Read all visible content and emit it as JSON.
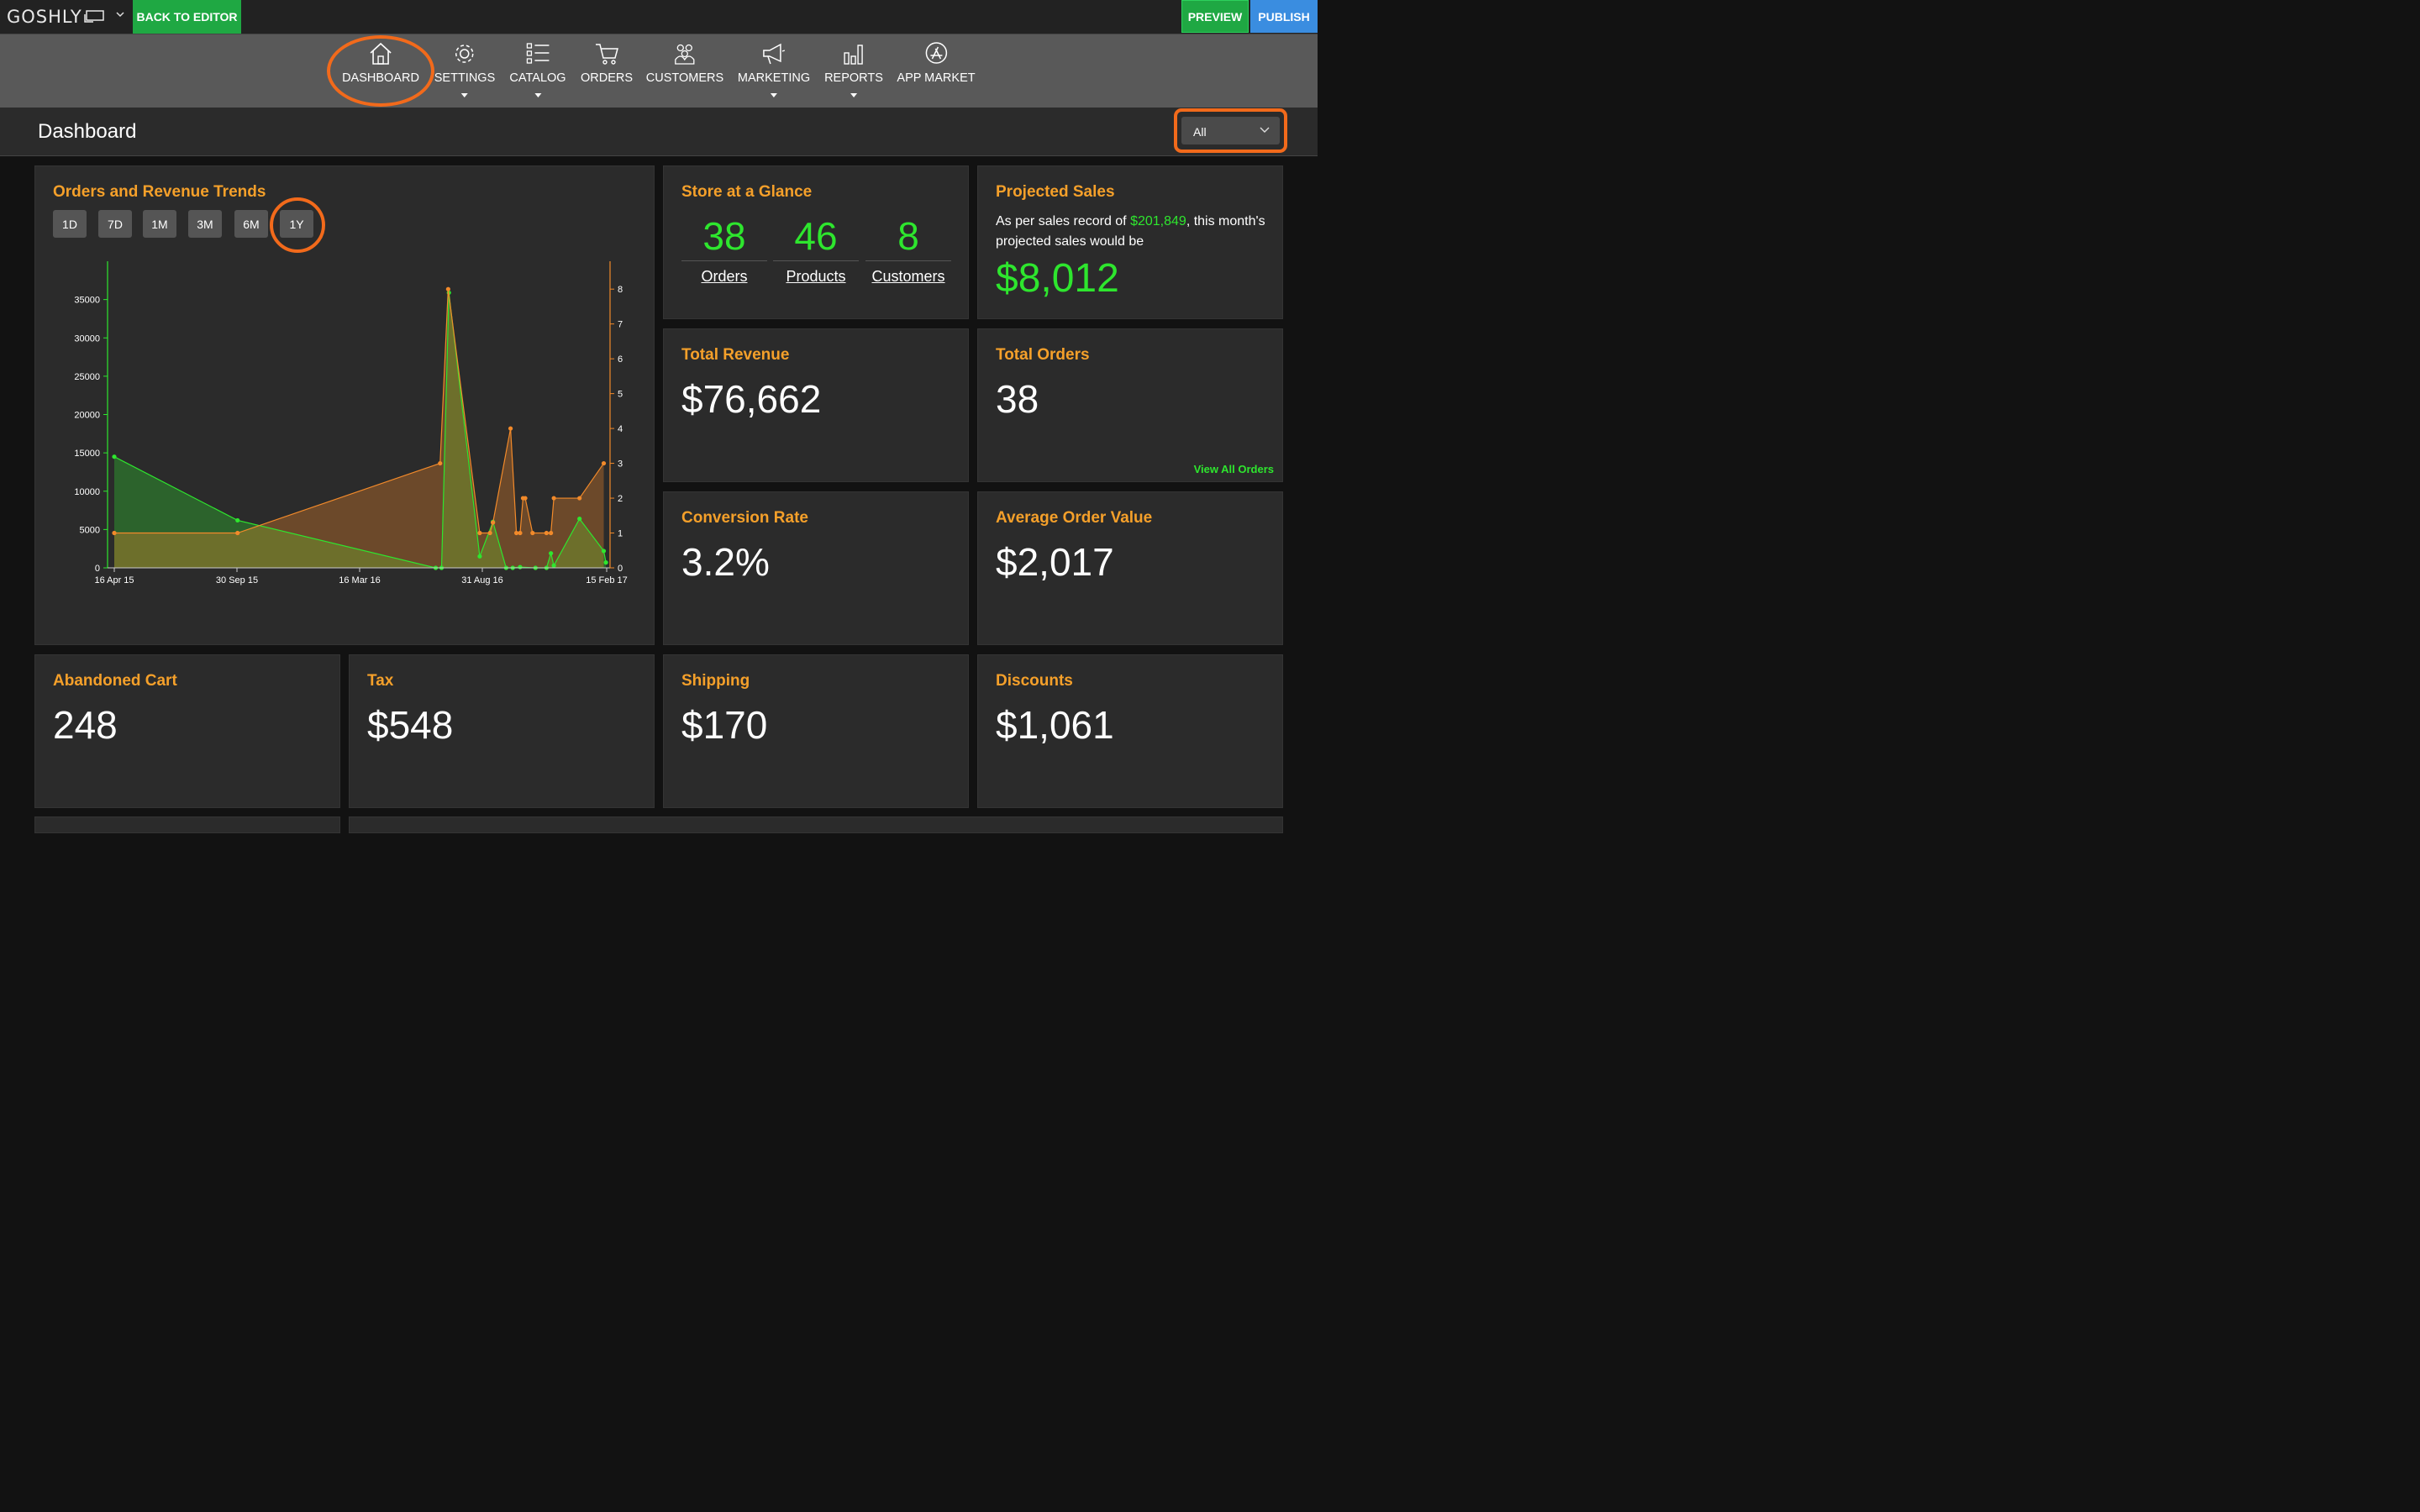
{
  "topbar": {
    "logo": "GOSHLY",
    "back_label": "BACK TO EDITOR",
    "preview_label": "PREVIEW",
    "publish_label": "PUBLISH"
  },
  "nav": {
    "items": [
      {
        "label": "DASHBOARD",
        "icon": "home-icon"
      },
      {
        "label": "SETTINGS",
        "icon": "gear-icon"
      },
      {
        "label": "CATALOG",
        "icon": "checklist-icon"
      },
      {
        "label": "ORDERS",
        "icon": "cart-icon"
      },
      {
        "label": "CUSTOMERS",
        "icon": "people-icon"
      },
      {
        "label": "MARKETING",
        "icon": "megaphone-icon"
      },
      {
        "label": "REPORTS",
        "icon": "bar-chart-icon"
      },
      {
        "label": "APP MARKET",
        "icon": "app-store-icon"
      }
    ]
  },
  "page": {
    "title": "Dashboard",
    "filter_value": "All"
  },
  "trends": {
    "title": "Orders and Revenue Trends",
    "ranges": [
      "1D",
      "7D",
      "1M",
      "3M",
      "6M",
      "1Y"
    ],
    "selected": "1Y"
  },
  "glance": {
    "title": "Store at a Glance",
    "orders": "38",
    "orders_label": "Orders",
    "products": "46",
    "products_label": "Products",
    "customers": "8",
    "customers_label": "Customers"
  },
  "projected": {
    "title": "Projected Sales",
    "text_before": "As per sales record of ",
    "record": "$201,849",
    "text_after": ", this month's projected sales would be",
    "value": "$8,012"
  },
  "stats": {
    "total_revenue": {
      "title": "Total Revenue",
      "value": "$76,662"
    },
    "total_orders": {
      "title": "Total Orders",
      "value": "38",
      "link": "View All Orders"
    },
    "conversion_rate": {
      "title": "Conversion Rate",
      "value": "3.2%"
    },
    "avg_order_value": {
      "title": "Average Order Value",
      "value": "$2,017"
    },
    "abandoned_cart": {
      "title": "Abandoned Cart",
      "value": "248"
    },
    "tax": {
      "title": "Tax",
      "value": "$548"
    },
    "shipping": {
      "title": "Shipping",
      "value": "$170"
    },
    "discounts": {
      "title": "Discounts",
      "value": "$1,061"
    }
  },
  "colors": {
    "accent": "#f5a02a",
    "green": "#2ee62e",
    "highlight_ring": "#f26a1b",
    "revenue_line": "#2ee62e",
    "orders_line": "#f28a2a"
  },
  "chart_data": {
    "type": "area",
    "title": "",
    "x_ticks": [
      "16 Apr 15",
      "30 Sep 15",
      "16 Mar 16",
      "31 Aug 16",
      "15 Feb 17"
    ],
    "left_axis": {
      "ticks": [
        0,
        5000,
        10000,
        15000,
        20000,
        25000,
        30000,
        35000
      ],
      "ylim": [
        0,
        40000
      ]
    },
    "right_axis": {
      "ticks": [
        0,
        1,
        2,
        3,
        4,
        5,
        6,
        7,
        8
      ],
      "ylim": [
        0,
        8.8
      ]
    },
    "x_range": [
      "2015-04-16",
      "2017-02-15"
    ],
    "series": [
      {
        "axis": "left",
        "points": [
          [
            "2015-04-16",
            14500
          ],
          [
            "2015-10-01",
            6200
          ],
          [
            "2016-06-27",
            0
          ],
          [
            "2016-07-05",
            0
          ],
          [
            "2016-07-15",
            35900
          ],
          [
            "2016-08-26",
            1500
          ],
          [
            "2016-09-13",
            6000
          ],
          [
            "2016-10-01",
            0
          ],
          [
            "2016-10-10",
            0
          ],
          [
            "2016-10-20",
            100
          ],
          [
            "2016-11-10",
            0
          ],
          [
            "2016-11-25",
            0
          ],
          [
            "2016-12-01",
            1900
          ],
          [
            "2016-12-05",
            300
          ],
          [
            "2017-01-09",
            6400
          ],
          [
            "2017-02-11",
            2200
          ],
          [
            "2017-02-14",
            700
          ]
        ]
      },
      {
        "axis": "right",
        "points": [
          [
            "2015-04-16",
            1
          ],
          [
            "2015-10-01",
            1
          ],
          [
            "2016-07-03",
            3
          ],
          [
            "2016-07-14",
            8
          ],
          [
            "2016-08-26",
            1
          ],
          [
            "2016-09-09",
            1
          ],
          [
            "2016-09-13",
            1.3
          ],
          [
            "2016-10-07",
            4
          ],
          [
            "2016-10-15",
            1
          ],
          [
            "2016-10-20",
            1
          ],
          [
            "2016-10-24",
            2
          ],
          [
            "2016-10-27",
            2
          ],
          [
            "2016-11-06",
            1
          ],
          [
            "2016-11-25",
            1
          ],
          [
            "2016-12-01",
            1
          ],
          [
            "2016-12-05",
            2
          ],
          [
            "2017-01-09",
            2
          ],
          [
            "2017-02-11",
            3.0
          ]
        ]
      }
    ]
  }
}
